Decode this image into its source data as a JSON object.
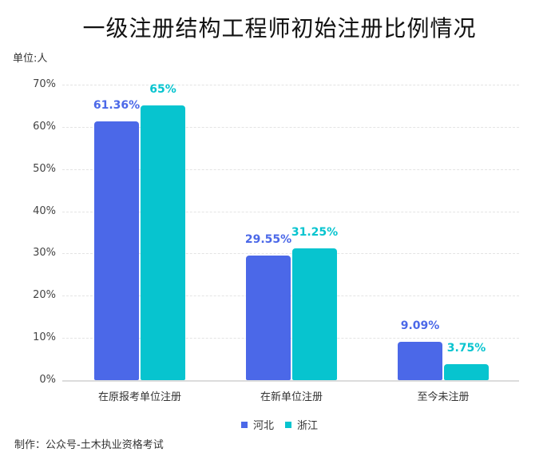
{
  "title": "一级注册结构工程师初始注册比例情况",
  "unit_label": "单位:人",
  "credit": "制作：公众号-土木执业资格考试",
  "colors": {
    "hebei": "#4b68e8",
    "zhejiang": "#07c4cf"
  },
  "legend": [
    {
      "name": "河北",
      "color": "#4b68e8"
    },
    {
      "name": "浙江",
      "color": "#07c4cf"
    }
  ],
  "y_ticks": [
    "0%",
    "10%",
    "20%",
    "30%",
    "40%",
    "50%",
    "60%",
    "70%"
  ],
  "categories": [
    "在原报考单位注册",
    "在新单位注册",
    "至今未注册"
  ],
  "value_labels": {
    "hebei": [
      "61.36%",
      "29.55%",
      "9.09%"
    ],
    "zhejiang": [
      "65%",
      "31.25%",
      "3.75%"
    ]
  },
  "chart_data": {
    "type": "bar",
    "title": "一级注册结构工程师初始注册比例情况",
    "subtitle": "单位:人",
    "xlabel": "",
    "ylabel": "",
    "categories": [
      "在原报考单位注册",
      "在新单位注册",
      "至今未注册"
    ],
    "series": [
      {
        "name": "河北",
        "color": "#4b68e8",
        "values": [
          61.36,
          29.55,
          9.09
        ]
      },
      {
        "name": "浙江",
        "color": "#07c4cf",
        "values": [
          65,
          31.25,
          3.75
        ]
      }
    ],
    "ylim": [
      0,
      70
    ],
    "y_ticks": [
      0,
      10,
      20,
      30,
      40,
      50,
      60,
      70
    ],
    "y_tick_format": "percent",
    "grid": true,
    "legend_position": "bottom",
    "annotations": [
      "制作：公众号-土木执业资格考试"
    ]
  }
}
